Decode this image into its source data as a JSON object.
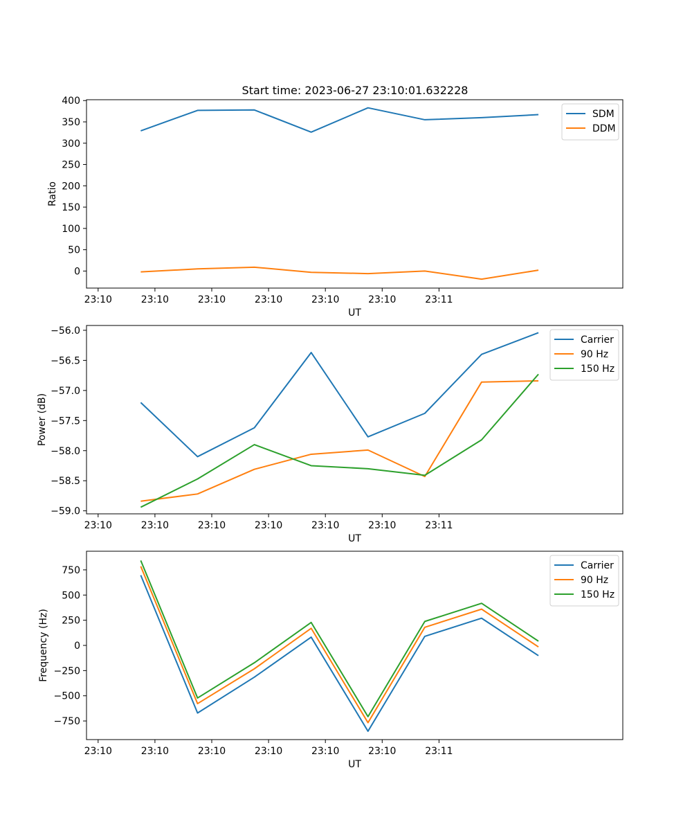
{
  "figure": {
    "title": "Start time: 2023-06-27 23:10:01.632228"
  },
  "chart_data": [
    {
      "type": "line",
      "xlabel": "UT",
      "ylabel": "Ratio",
      "x_tick_labels": [
        "23:10",
        "23:10",
        "23:10",
        "23:10",
        "23:10",
        "23:10",
        "23:11"
      ],
      "yticks": [
        0,
        50,
        100,
        150,
        200,
        250,
        300,
        350,
        400
      ],
      "ylim": [
        -40,
        402
      ],
      "legend": "top-right",
      "grid": false,
      "series": [
        {
          "name": "SDM",
          "color": "#1f77b4",
          "values": [
            329,
            377,
            378,
            326,
            383,
            355,
            360,
            367
          ]
        },
        {
          "name": "DDM",
          "color": "#ff7f0e",
          "values": [
            -2,
            5,
            9,
            -3,
            -6,
            0,
            -19,
            2
          ]
        }
      ]
    },
    {
      "type": "line",
      "xlabel": "UT",
      "ylabel": "Power (dB)",
      "x_tick_labels": [
        "23:10",
        "23:10",
        "23:10",
        "23:10",
        "23:10",
        "23:10",
        "23:11"
      ],
      "yticks": [
        -59.0,
        -58.5,
        -58.0,
        -57.5,
        -57.0,
        -56.5,
        -56.0
      ],
      "ytick_labels": [
        "−59.0",
        "−58.5",
        "−58.0",
        "−57.5",
        "−57.0",
        "−56.5",
        "−56.0"
      ],
      "ylim": [
        -59.05,
        -55.92
      ],
      "legend": "top-right",
      "grid": false,
      "series": [
        {
          "name": "Carrier",
          "color": "#1f77b4",
          "values": [
            -57.2,
            -58.1,
            -57.62,
            -56.37,
            -57.77,
            -57.38,
            -56.4,
            -56.04
          ]
        },
        {
          "name": "90 Hz",
          "color": "#ff7f0e",
          "values": [
            -58.84,
            -58.72,
            -58.31,
            -58.06,
            -57.99,
            -58.43,
            -56.86,
            -56.84
          ]
        },
        {
          "name": "150 Hz",
          "color": "#2ca02c",
          "values": [
            -58.94,
            -58.47,
            -57.9,
            -58.25,
            -58.3,
            -58.41,
            -57.82,
            -56.73
          ]
        }
      ]
    },
    {
      "type": "line",
      "xlabel": "UT",
      "ylabel": "Frequency (Hz)",
      "x_tick_labels": [
        "23:10",
        "23:10",
        "23:10",
        "23:10",
        "23:10",
        "23:10",
        "23:11"
      ],
      "yticks": [
        -750,
        -500,
        -250,
        0,
        250,
        500,
        750
      ],
      "ytick_labels": [
        "−750",
        "−500",
        "−250",
        "0",
        "250",
        "500",
        "750"
      ],
      "ylim": [
        -935,
        935
      ],
      "legend": "top-right",
      "grid": false,
      "series": [
        {
          "name": "Carrier",
          "color": "#1f77b4",
          "values": [
            697,
            -671,
            -315,
            82,
            -852,
            90,
            270,
            -102
          ]
        },
        {
          "name": "90 Hz",
          "color": "#ff7f0e",
          "values": [
            785,
            -578,
            -232,
            170,
            -767,
            180,
            360,
            -15
          ]
        },
        {
          "name": "150 Hz",
          "color": "#2ca02c",
          "values": [
            843,
            -522,
            -172,
            228,
            -707,
            238,
            418,
            42
          ]
        }
      ]
    }
  ]
}
